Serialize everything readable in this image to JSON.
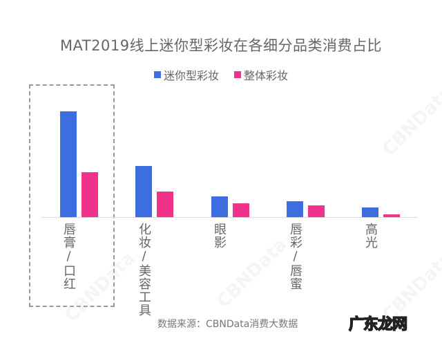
{
  "chart_data": {
    "type": "bar",
    "title": "MAT2019线上迷你型彩妆在各细分品类消费占比",
    "categories": [
      "唇膏/口红",
      "化妆/美容工具",
      "眼影",
      "唇彩/唇蜜",
      "高光"
    ],
    "series": [
      {
        "name": "迷你型彩妆",
        "color": "#3d6ee0",
        "values": [
          153,
          74,
          30,
          23,
          14
        ]
      },
      {
        "name": "整体彩妆",
        "color": "#f0328a",
        "values": [
          65,
          37,
          20,
          17,
          4
        ]
      }
    ],
    "xlabel": "",
    "ylabel": "",
    "ylim": [
      0,
      160
    ],
    "value_unit": "relative bar height (no axis values shown)",
    "grid": false,
    "legend_position": "top-center",
    "annotations": [
      "dashed highlight box around 唇膏/口红"
    ]
  },
  "labels": {
    "title": "MAT2019线上迷你型彩妆在各细分品类消费占比",
    "legend": [
      "迷你型彩妆",
      "整体彩妆"
    ],
    "categories_vertical": [
      "唇膏/口红",
      "化妆/美容工具",
      "眼影",
      "唇彩/唇蜜",
      "高光"
    ],
    "source": "数据来源：CBNData消费大数据",
    "watermark": "CBNData",
    "brand": "广东龙网"
  },
  "colors": {
    "mini": "#3d6ee0",
    "overall": "#f0328a"
  }
}
